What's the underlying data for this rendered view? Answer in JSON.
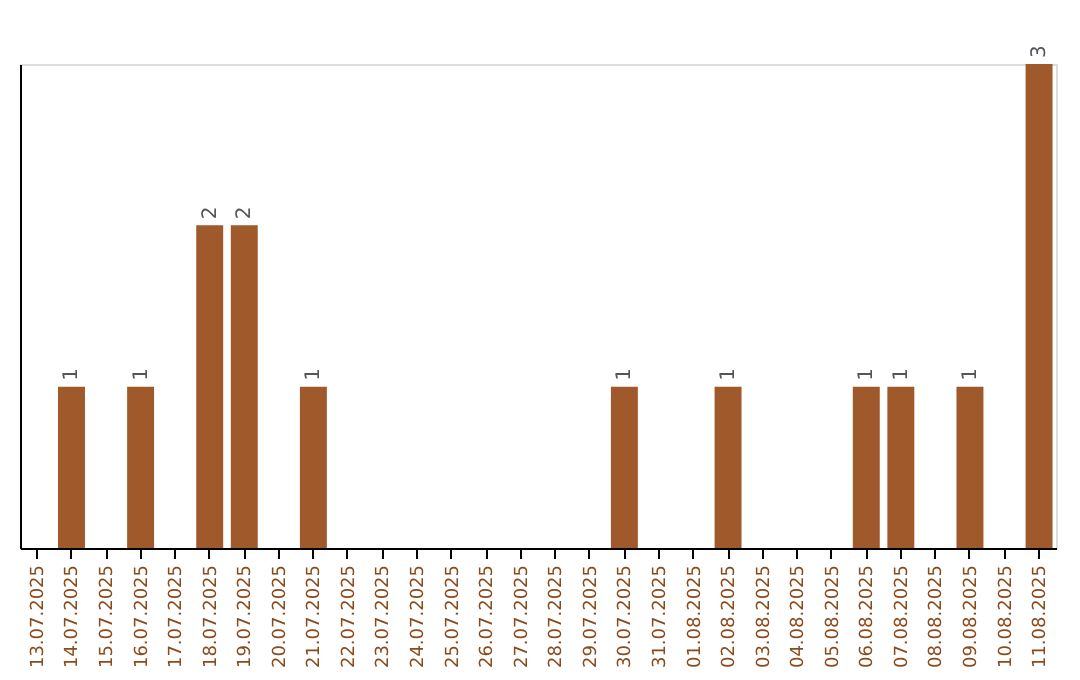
{
  "chart_data": {
    "type": "bar",
    "categories": [
      "13.07.2025",
      "14.07.2025",
      "15.07.2025",
      "16.07.2025",
      "17.07.2025",
      "18.07.2025",
      "19.07.2025",
      "20.07.2025",
      "21.07.2025",
      "22.07.2025",
      "23.07.2025",
      "24.07.2025",
      "25.07.2025",
      "26.07.2025",
      "27.07.2025",
      "28.07.2025",
      "29.07.2025",
      "30.07.2025",
      "31.07.2025",
      "01.08.2025",
      "02.08.2025",
      "03.08.2025",
      "04.08.2025",
      "05.08.2025",
      "06.08.2025",
      "07.08.2025",
      "08.08.2025",
      "09.08.2025",
      "10.08.2025",
      "11.08.2025"
    ],
    "values": [
      0,
      1,
      0,
      1,
      0,
      2,
      2,
      0,
      1,
      0,
      0,
      0,
      0,
      0,
      0,
      0,
      0,
      1,
      0,
      0,
      1,
      0,
      0,
      0,
      1,
      1,
      0,
      1,
      0,
      3
    ],
    "value_labels": [
      null,
      "1",
      null,
      "1",
      null,
      "2",
      "2",
      null,
      "1",
      null,
      null,
      null,
      null,
      null,
      null,
      null,
      null,
      "1",
      null,
      null,
      "1",
      null,
      null,
      null,
      "1",
      "1",
      null,
      "1",
      null,
      "3"
    ],
    "color": "#a0592a",
    "ylim": [
      0,
      3
    ],
    "grid": false,
    "tick_labels": "x"
  }
}
